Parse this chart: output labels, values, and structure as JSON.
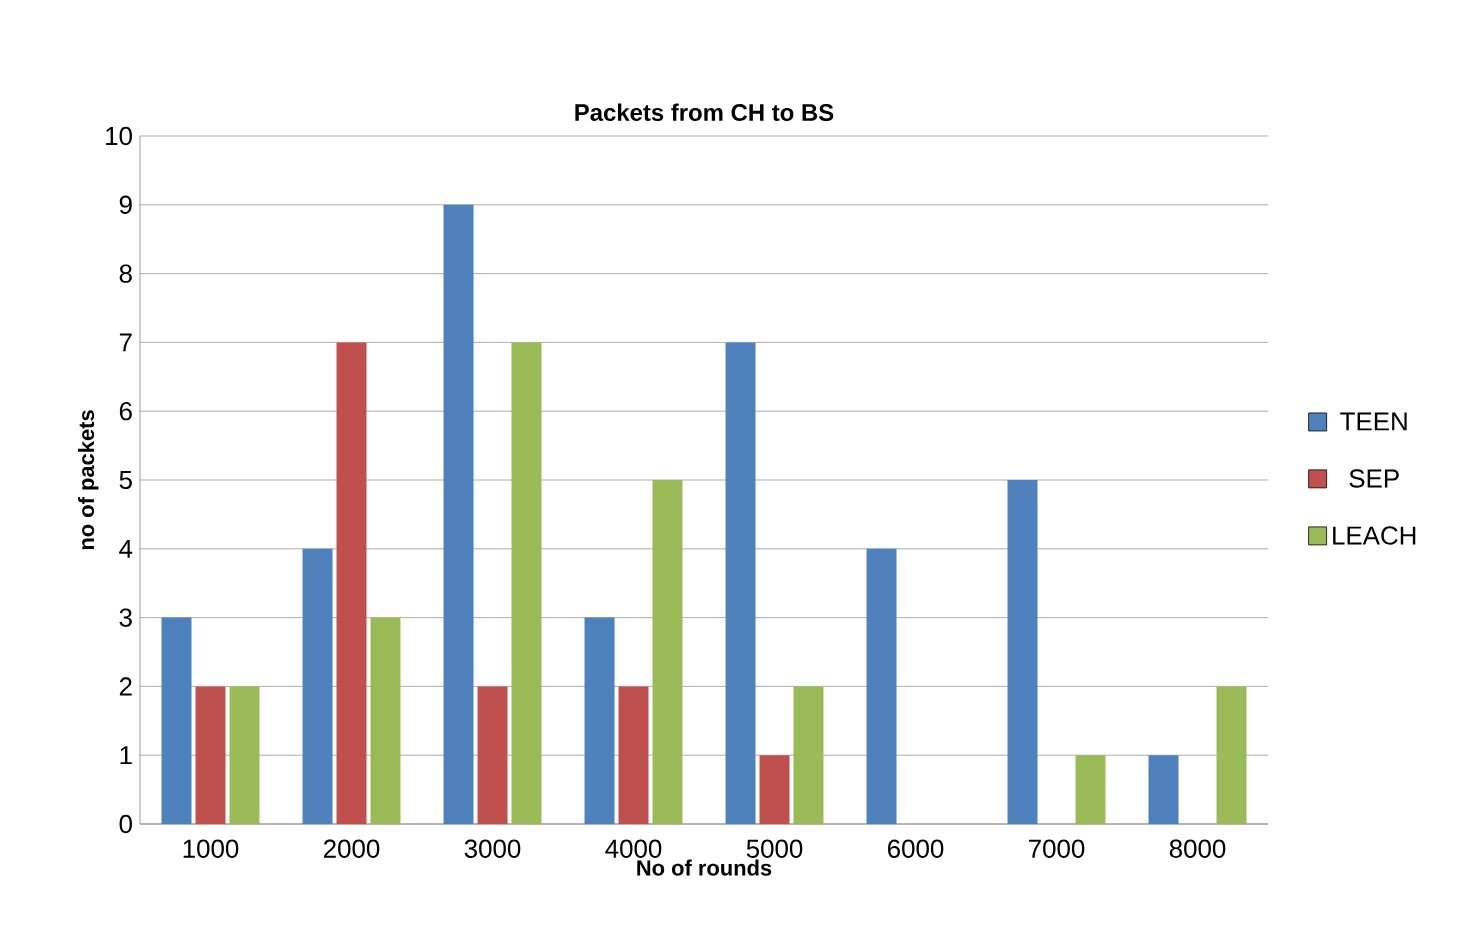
{
  "chart_data": {
    "type": "bar",
    "title": "Packets from CH to BS",
    "xlabel": "No of rounds",
    "ylabel": "no of packets",
    "categories": [
      "1000",
      "2000",
      "3000",
      "4000",
      "5000",
      "6000",
      "7000",
      "8000"
    ],
    "series": [
      {
        "name": "TEEN",
        "color": "#4f81bd",
        "values": [
          3,
          4,
          9,
          3,
          7,
          4,
          5,
          1
        ]
      },
      {
        "name": "SEP",
        "color": "#c0504d",
        "values": [
          2,
          7,
          2,
          2,
          1,
          0,
          0,
          0
        ]
      },
      {
        "name": "LEACH",
        "color": "#9bbb59",
        "values": [
          2,
          3,
          7,
          5,
          2,
          0,
          1,
          2
        ]
      }
    ],
    "ylim": [
      0,
      10
    ],
    "yticks": [
      0,
      1,
      2,
      3,
      4,
      5,
      6,
      7,
      8,
      9,
      10
    ],
    "grid": "y",
    "legend": "right"
  }
}
